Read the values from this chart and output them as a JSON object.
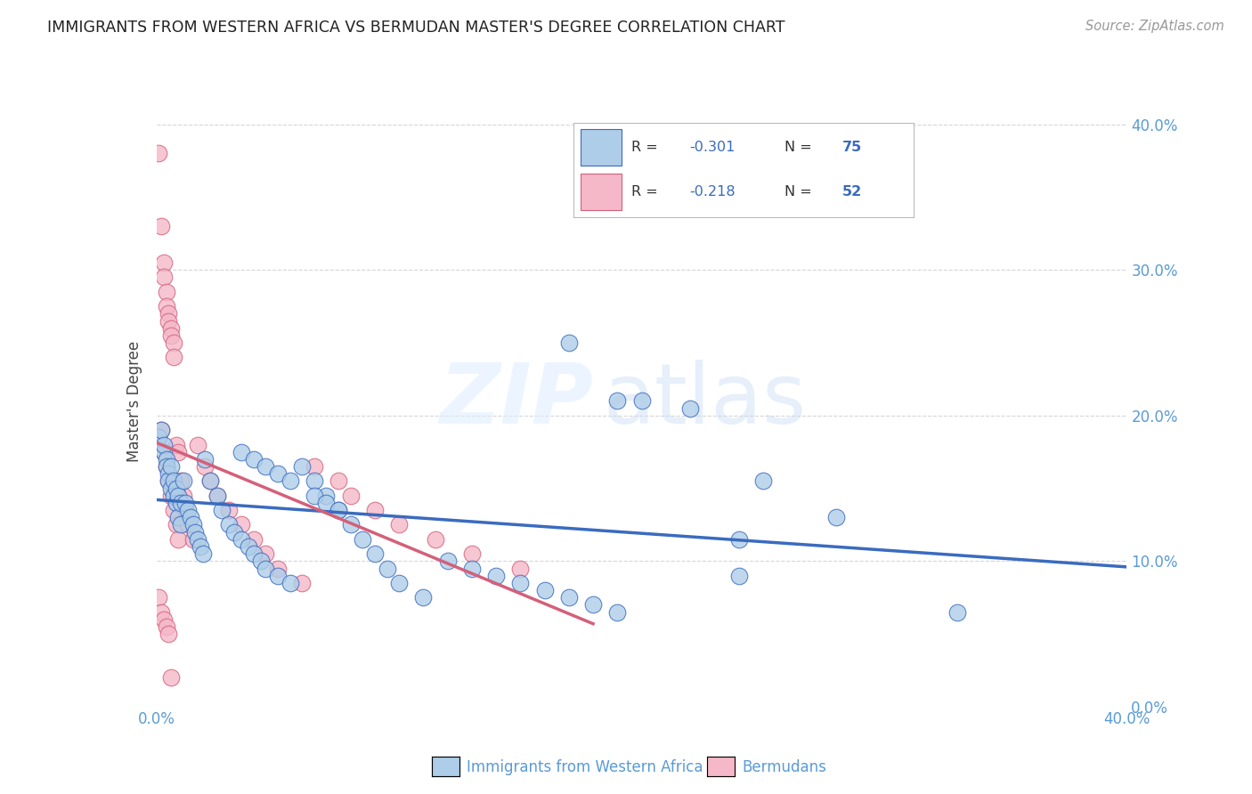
{
  "title": "IMMIGRANTS FROM WESTERN AFRICA VS BERMUDAN MASTER'S DEGREE CORRELATION CHART",
  "source": "Source: ZipAtlas.com",
  "ylabel": "Master's Degree",
  "watermark": "ZIPatlas",
  "legend1_color": "#aecde8",
  "legend2_color": "#f4b8c8",
  "line1_color": "#3a6bbf",
  "line2_color": "#d4607a",
  "background_color": "#ffffff",
  "grid_color": "#cccccc",
  "title_color": "#222222",
  "axis_color": "#5a9bd5",
  "r1": -0.301,
  "n1": 75,
  "r2": -0.218,
  "n2": 52,
  "xmin": 0.0,
  "xmax": 0.4,
  "ymin": 0.0,
  "ymax": 0.42,
  "blue_x": [
    0.001,
    0.002,
    0.003,
    0.003,
    0.004,
    0.004,
    0.005,
    0.005,
    0.006,
    0.006,
    0.007,
    0.007,
    0.008,
    0.008,
    0.009,
    0.009,
    0.01,
    0.01,
    0.011,
    0.012,
    0.013,
    0.014,
    0.015,
    0.016,
    0.017,
    0.018,
    0.019,
    0.02,
    0.022,
    0.025,
    0.027,
    0.03,
    0.032,
    0.035,
    0.038,
    0.04,
    0.043,
    0.045,
    0.05,
    0.055,
    0.06,
    0.065,
    0.07,
    0.075,
    0.08,
    0.085,
    0.09,
    0.095,
    0.1,
    0.11,
    0.12,
    0.13,
    0.14,
    0.15,
    0.16,
    0.17,
    0.18,
    0.19,
    0.2,
    0.22,
    0.24,
    0.25,
    0.17,
    0.19,
    0.24,
    0.28,
    0.33,
    0.035,
    0.04,
    0.045,
    0.05,
    0.055,
    0.065,
    0.07,
    0.075
  ],
  "blue_y": [
    0.185,
    0.19,
    0.175,
    0.18,
    0.17,
    0.165,
    0.16,
    0.155,
    0.165,
    0.15,
    0.155,
    0.145,
    0.15,
    0.14,
    0.145,
    0.13,
    0.14,
    0.125,
    0.155,
    0.14,
    0.135,
    0.13,
    0.125,
    0.12,
    0.115,
    0.11,
    0.105,
    0.17,
    0.155,
    0.145,
    0.135,
    0.125,
    0.12,
    0.115,
    0.11,
    0.105,
    0.1,
    0.095,
    0.09,
    0.085,
    0.165,
    0.155,
    0.145,
    0.135,
    0.125,
    0.115,
    0.105,
    0.095,
    0.085,
    0.075,
    0.1,
    0.095,
    0.09,
    0.085,
    0.08,
    0.075,
    0.07,
    0.065,
    0.21,
    0.205,
    0.115,
    0.155,
    0.25,
    0.21,
    0.09,
    0.13,
    0.065,
    0.175,
    0.17,
    0.165,
    0.16,
    0.155,
    0.145,
    0.14,
    0.135
  ],
  "pink_x": [
    0.001,
    0.001,
    0.002,
    0.002,
    0.003,
    0.003,
    0.003,
    0.004,
    0.004,
    0.004,
    0.005,
    0.005,
    0.005,
    0.006,
    0.006,
    0.006,
    0.007,
    0.007,
    0.007,
    0.008,
    0.008,
    0.009,
    0.009,
    0.01,
    0.011,
    0.012,
    0.013,
    0.015,
    0.017,
    0.02,
    0.022,
    0.025,
    0.03,
    0.035,
    0.04,
    0.045,
    0.05,
    0.06,
    0.065,
    0.075,
    0.08,
    0.09,
    0.1,
    0.115,
    0.13,
    0.15,
    0.001,
    0.002,
    0.003,
    0.004,
    0.005,
    0.006
  ],
  "pink_y": [
    0.38,
    0.185,
    0.33,
    0.19,
    0.305,
    0.295,
    0.175,
    0.285,
    0.275,
    0.165,
    0.27,
    0.265,
    0.155,
    0.26,
    0.255,
    0.145,
    0.25,
    0.24,
    0.135,
    0.18,
    0.125,
    0.175,
    0.115,
    0.155,
    0.145,
    0.135,
    0.125,
    0.115,
    0.18,
    0.165,
    0.155,
    0.145,
    0.135,
    0.125,
    0.115,
    0.105,
    0.095,
    0.085,
    0.165,
    0.155,
    0.145,
    0.135,
    0.125,
    0.115,
    0.105,
    0.095,
    0.075,
    0.065,
    0.06,
    0.055,
    0.05,
    0.02
  ]
}
